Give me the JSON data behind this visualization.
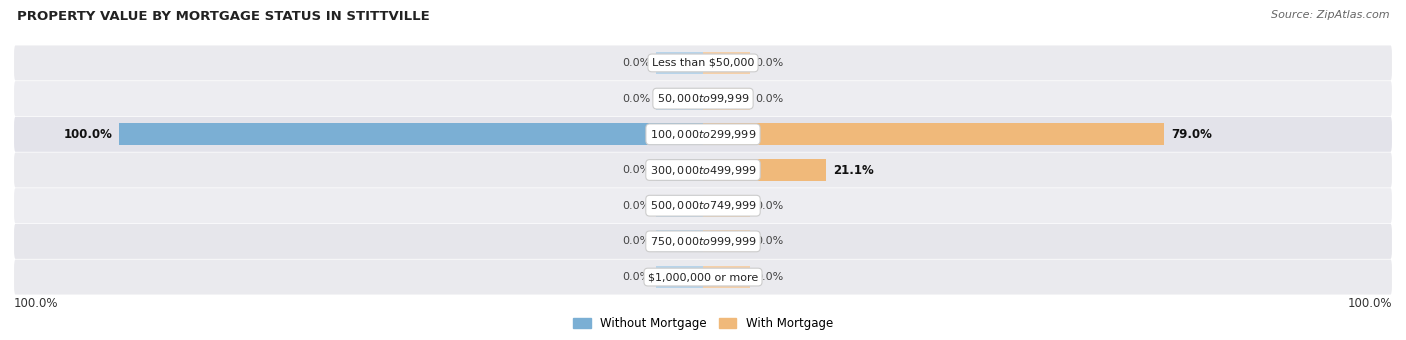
{
  "title": "PROPERTY VALUE BY MORTGAGE STATUS IN STITTVILLE",
  "source": "Source: ZipAtlas.com",
  "categories": [
    "Less than $50,000",
    "$50,000 to $99,999",
    "$100,000 to $299,999",
    "$300,000 to $499,999",
    "$500,000 to $749,999",
    "$750,000 to $999,999",
    "$1,000,000 or more"
  ],
  "without_mortgage": [
    0.0,
    0.0,
    100.0,
    0.0,
    0.0,
    0.0,
    0.0
  ],
  "with_mortgage": [
    0.0,
    0.0,
    79.0,
    21.1,
    0.0,
    0.0,
    0.0
  ],
  "color_without": "#7bafd4",
  "color_with": "#f0b97a",
  "color_without_light": "#b8d4ea",
  "color_with_light": "#f5d0a9",
  "bg_row_colors": [
    "#e8e8ec",
    "#ebebef",
    "#e0e0e8",
    "#e8e8ec",
    "#ebebef",
    "#e4e4e8",
    "#e8e8ec"
  ],
  "axis_label_left": "100.0%",
  "axis_label_right": "100.0%",
  "legend_without": "Without Mortgage",
  "legend_with": "With Mortgage",
  "max_value": 100.0,
  "stub_size": 8.0
}
